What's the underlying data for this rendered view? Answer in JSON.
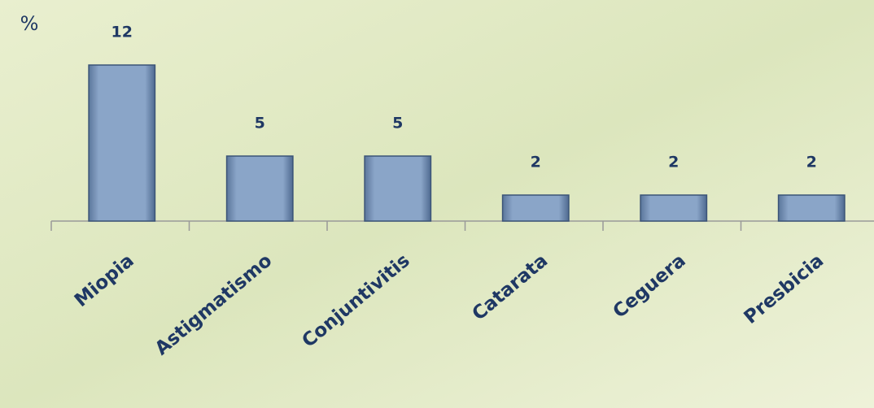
{
  "chart_data": {
    "type": "bar",
    "y_label": "%",
    "categories": [
      "Miopia",
      "Astigmatismo",
      "Conjuntivitis",
      "Catarata",
      "Ceguera",
      "Presbicia"
    ],
    "values": [
      12,
      5,
      5,
      2,
      2,
      2
    ],
    "color": "#7f9bc0",
    "ylim": [
      0,
      12
    ]
  }
}
